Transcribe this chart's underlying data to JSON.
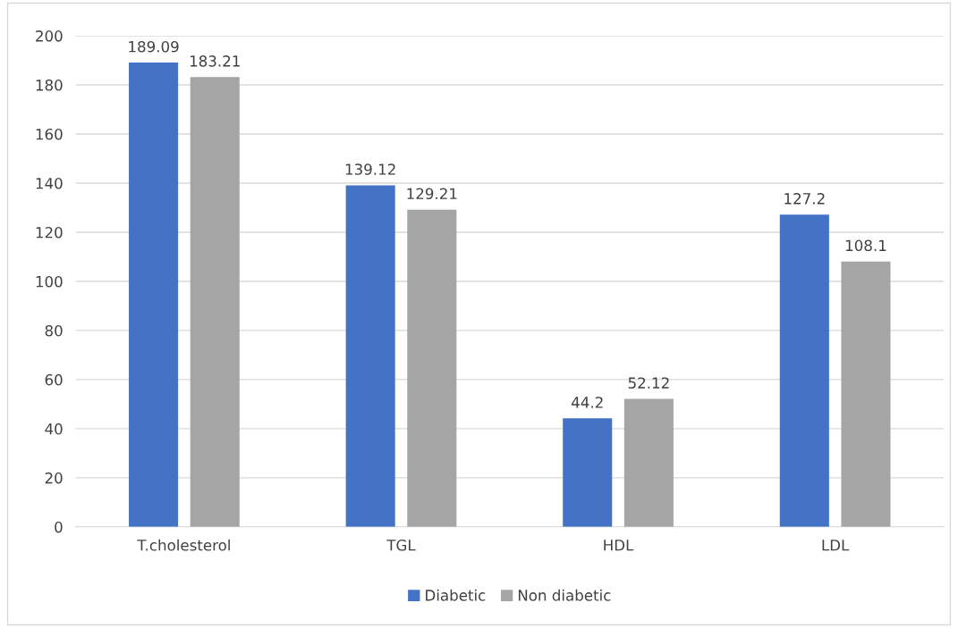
{
  "chart_data": {
    "type": "bar",
    "categories": [
      "T.cholesterol",
      "TGL",
      "HDL",
      "LDL"
    ],
    "series": [
      {
        "name": "Diabetic",
        "color": "#4472c4",
        "values": [
          189.09,
          139.12,
          44.2,
          127.2
        ]
      },
      {
        "name": "Non diabetic",
        "color": "#a5a5a5",
        "values": [
          183.21,
          129.21,
          52.12,
          108.1
        ]
      }
    ],
    "ylim": [
      0,
      200
    ],
    "yticks": [
      0,
      20,
      40,
      60,
      80,
      100,
      120,
      140,
      160,
      180,
      200
    ],
    "grid": "y",
    "legend": "bottom",
    "data_labels": true
  }
}
